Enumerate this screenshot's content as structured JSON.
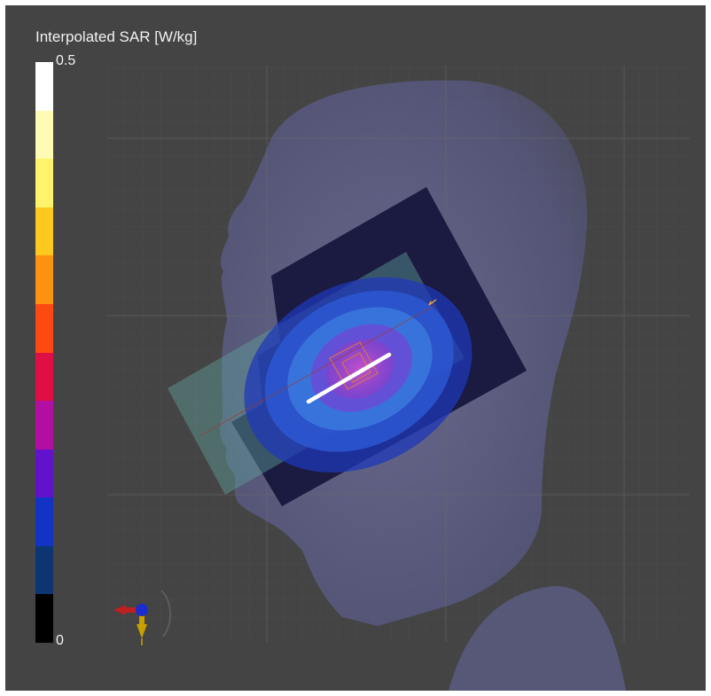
{
  "colorbar": {
    "title": "Interpolated SAR [W/kg]",
    "max_label": "0.5",
    "min_label": "0",
    "segments": [
      "#ffffff",
      "#fffab4",
      "#fff36b",
      "#fec91f",
      "#fc920f",
      "#fd4a12",
      "#df0f45",
      "#b20fa2",
      "#6312cc",
      "#1233c4",
      "#0c3572",
      "#000000"
    ]
  },
  "scene": {
    "background": "#444444",
    "head_color": "#5e5f86",
    "sar_contour_colors": [
      "#1f38b8",
      "#2a5bd8",
      "#3d7de0",
      "#6d48d6",
      "#a33cc8"
    ]
  }
}
